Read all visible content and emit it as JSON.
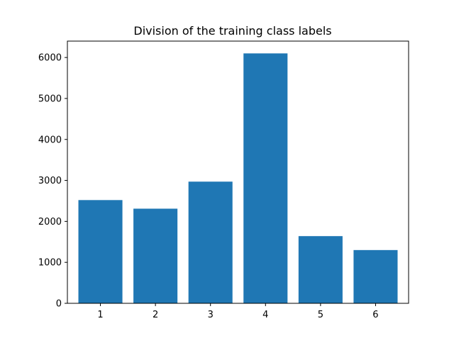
{
  "chart_data": {
    "type": "bar",
    "title": "Division of the training class labels",
    "xlabel": "",
    "ylabel": "",
    "categories": [
      "1",
      "2",
      "3",
      "4",
      "5",
      "6"
    ],
    "values": [
      2520,
      2310,
      2970,
      6100,
      1640,
      1300
    ],
    "ylim": [
      0,
      6400
    ],
    "yticks": [
      0,
      1000,
      2000,
      3000,
      4000,
      5000,
      6000
    ],
    "grid": false,
    "bar_color": "#1f77b4"
  }
}
